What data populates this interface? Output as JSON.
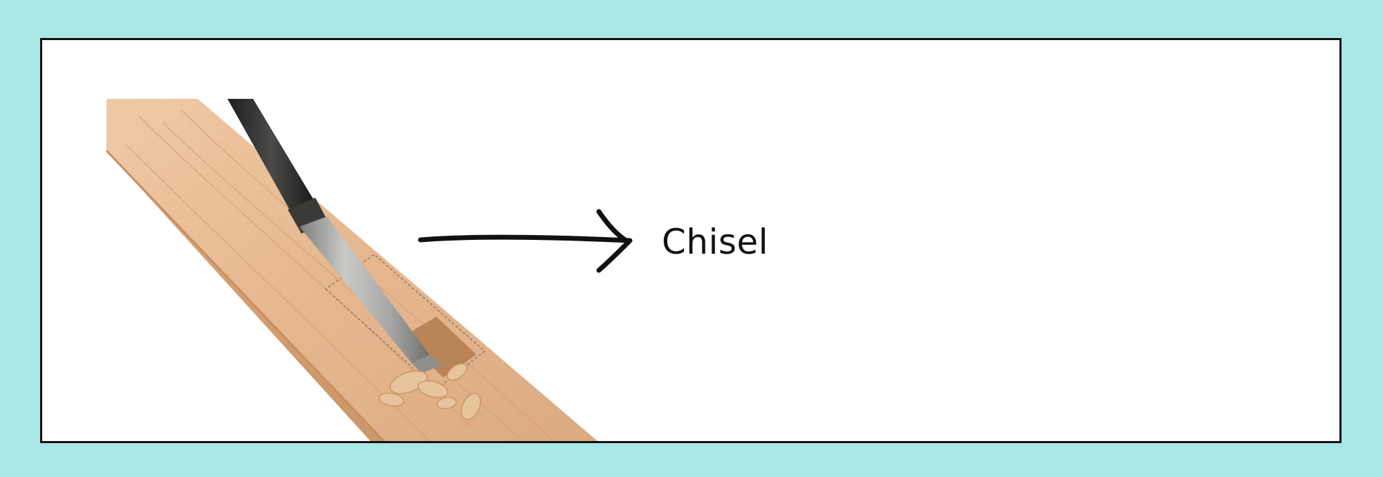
{
  "colors": {
    "page_background": "#a9e6e6",
    "card_background": "#ffffff",
    "border": "#111111",
    "arrow": "#111111",
    "text": "#111111",
    "wood": "#e3b58e",
    "chisel_blade": "#a8a9a6",
    "chisel_handle": "#2b2b2a"
  },
  "image": {
    "subject": "chisel-in-wood-photo"
  },
  "label": {
    "text": "Chisel"
  },
  "arrow": {
    "icon": "arrow-right-icon"
  }
}
